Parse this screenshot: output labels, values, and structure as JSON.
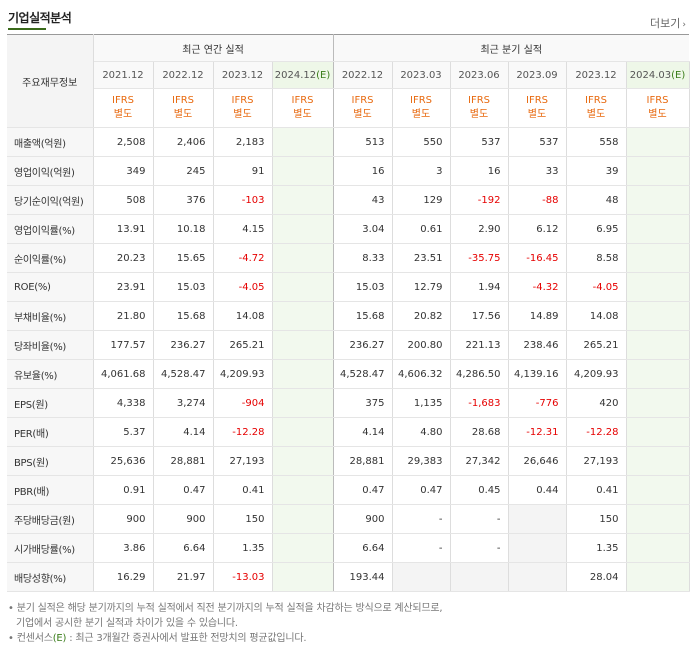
{
  "title": "기업실적분석",
  "more_label": "더보기",
  "header": {
    "row_label": "주요재무정보",
    "annual_group": "최근 연간 실적",
    "quarter_group": "최근 분기 실적",
    "annual_periods": [
      "2021.12",
      "2022.12",
      "2023.12",
      "2024.12"
    ],
    "quarter_periods": [
      "2022.12",
      "2023.03",
      "2023.06",
      "2023.09",
      "2023.12",
      "2024.03"
    ],
    "est_suffix": "(E)",
    "ifrs_top": "IFRS",
    "ifrs_bottom": "별도"
  },
  "rows": [
    {
      "label": "매출액(억원)",
      "values": [
        "2,508",
        "2,406",
        "2,183",
        "",
        "513",
        "550",
        "537",
        "537",
        "558",
        ""
      ]
    },
    {
      "label": "영업이익(억원)",
      "values": [
        "349",
        "245",
        "91",
        "",
        "16",
        "3",
        "16",
        "33",
        "39",
        ""
      ]
    },
    {
      "label": "당기순이익(억원)",
      "values": [
        "508",
        "376",
        "-103",
        "",
        "43",
        "129",
        "-192",
        "-88",
        "48",
        ""
      ]
    },
    {
      "label": "영업이익률(%)",
      "values": [
        "13.91",
        "10.18",
        "4.15",
        "",
        "3.04",
        "0.61",
        "2.90",
        "6.12",
        "6.95",
        ""
      ]
    },
    {
      "label": "순이익률(%)",
      "values": [
        "20.23",
        "15.65",
        "-4.72",
        "",
        "8.33",
        "23.51",
        "-35.75",
        "-16.45",
        "8.58",
        ""
      ]
    },
    {
      "label": "ROE(%)",
      "values": [
        "23.91",
        "15.03",
        "-4.05",
        "",
        "15.03",
        "12.79",
        "1.94",
        "-4.32",
        "-4.05",
        ""
      ]
    },
    {
      "label": "부채비율(%)",
      "values": [
        "21.80",
        "15.68",
        "14.08",
        "",
        "15.68",
        "20.82",
        "17.56",
        "14.89",
        "14.08",
        ""
      ]
    },
    {
      "label": "당좌비율(%)",
      "values": [
        "177.57",
        "236.27",
        "265.21",
        "",
        "236.27",
        "200.80",
        "221.13",
        "238.46",
        "265.21",
        ""
      ]
    },
    {
      "label": "유보율(%)",
      "values": [
        "4,061.68",
        "4,528.47",
        "4,209.93",
        "",
        "4,528.47",
        "4,606.32",
        "4,286.50",
        "4,139.16",
        "4,209.93",
        ""
      ]
    },
    {
      "label": "EPS(원)",
      "values": [
        "4,338",
        "3,274",
        "-904",
        "",
        "375",
        "1,135",
        "-1,683",
        "-776",
        "420",
        ""
      ]
    },
    {
      "label": "PER(배)",
      "values": [
        "5.37",
        "4.14",
        "-12.28",
        "",
        "4.14",
        "4.80",
        "28.68",
        "-12.31",
        "-12.28",
        ""
      ]
    },
    {
      "label": "BPS(원)",
      "values": [
        "25,636",
        "28,881",
        "27,193",
        "",
        "28,881",
        "29,383",
        "27,342",
        "26,646",
        "27,193",
        ""
      ]
    },
    {
      "label": "PBR(배)",
      "values": [
        "0.91",
        "0.47",
        "0.41",
        "",
        "0.47",
        "0.47",
        "0.45",
        "0.44",
        "0.41",
        ""
      ]
    },
    {
      "label": "주당배당금(원)",
      "values": [
        "900",
        "900",
        "150",
        "",
        "900",
        "-",
        "-",
        "",
        "150",
        ""
      ]
    },
    {
      "label": "시가배당률(%)",
      "values": [
        "3.86",
        "6.64",
        "1.35",
        "",
        "6.64",
        "-",
        "-",
        "",
        "1.35",
        ""
      ]
    },
    {
      "label": "배당성향(%)",
      "values": [
        "16.29",
        "21.97",
        "-13.03",
        "",
        "193.44",
        "",
        "",
        "",
        "28.04",
        ""
      ]
    }
  ],
  "notes": {
    "line1": "분기 실적은 해당 분기까지의 누적 실적에서 직전 분기까지의 누적 실적을 차감하는 방식으로 계산되므로,",
    "line2": "기업에서 공시한 분기 실적과 차이가 있을 수 있습니다.",
    "line3_prefix": "컨센서스",
    "line3_est": "(E)",
    "line3_rest": ": 최근 3개월간 증권사에서 발표한 전망치의 평균값입니다."
  },
  "colors": {
    "negative": "#e60000",
    "ifrs": "#e86a10",
    "estimate_bg": "#f2f9ee",
    "accent": "#3a6a1a"
  }
}
